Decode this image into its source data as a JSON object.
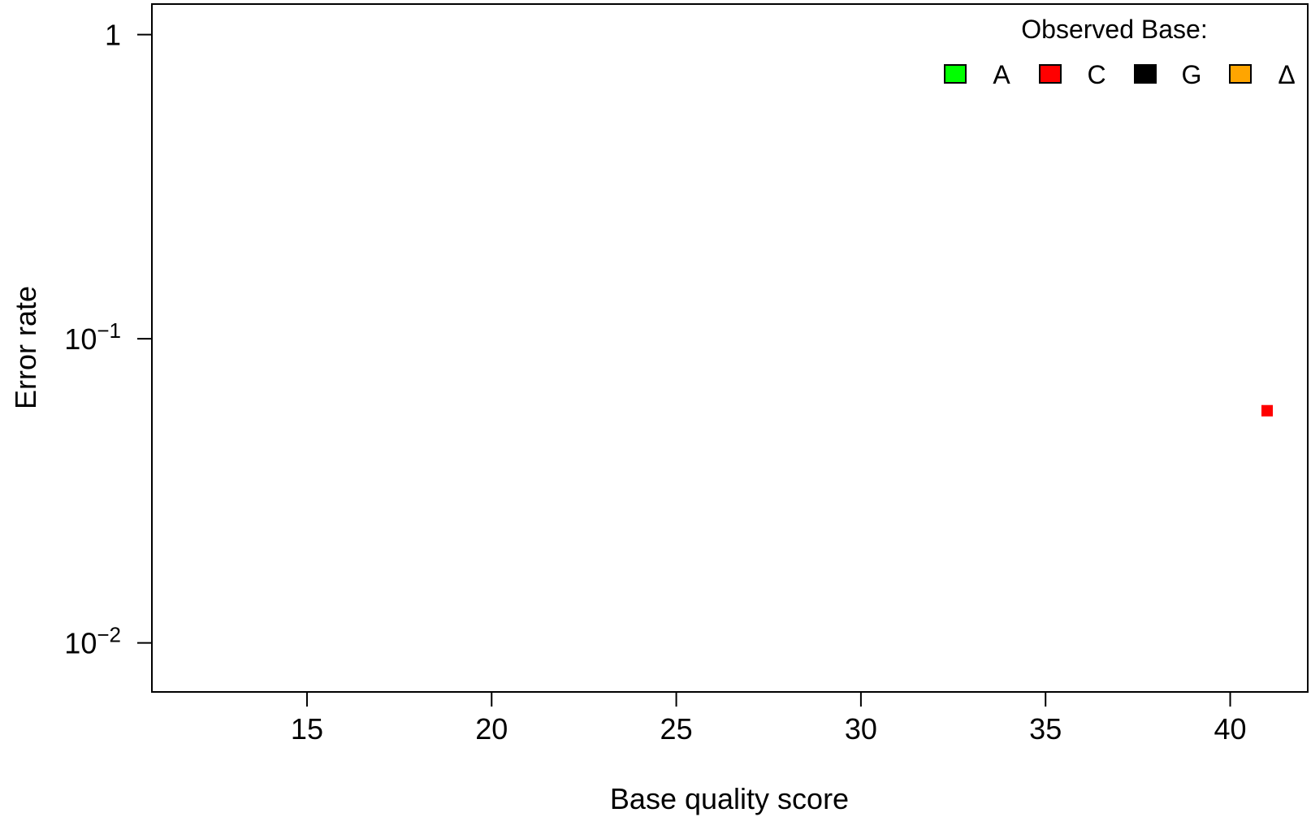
{
  "chart_data": {
    "type": "scatter",
    "xlabel": "Base quality score",
    "ylabel": "Error rate",
    "xlim": [
      10.8,
      42.1
    ],
    "ylim": [
      0.0069,
      1.26
    ],
    "y_scale": "log",
    "grid": false,
    "x_ticks": [
      {
        "value": 15,
        "label": "15"
      },
      {
        "value": 20,
        "label": "20"
      },
      {
        "value": 25,
        "label": "25"
      },
      {
        "value": 30,
        "label": "30"
      },
      {
        "value": 35,
        "label": "35"
      },
      {
        "value": 40,
        "label": "40"
      }
    ],
    "y_ticks": [
      {
        "value": 1,
        "base": "1",
        "exp": ""
      },
      {
        "value": 0.1,
        "base": "10",
        "exp": "−1"
      },
      {
        "value": 0.01,
        "base": "10",
        "exp": "−2"
      }
    ],
    "legend": {
      "title": "Observed Base:",
      "position": "top-right",
      "entries": [
        {
          "label": "A",
          "color": "#00ff00"
        },
        {
          "label": "C",
          "color": "#ff0000"
        },
        {
          "label": "G",
          "color": "#000000"
        },
        {
          "label": "Δ",
          "color": "#ffa500"
        }
      ]
    },
    "series": [
      {
        "name": "C",
        "color": "#ff0000",
        "points": [
          {
            "x": 41,
            "y": 0.058
          }
        ]
      }
    ]
  }
}
